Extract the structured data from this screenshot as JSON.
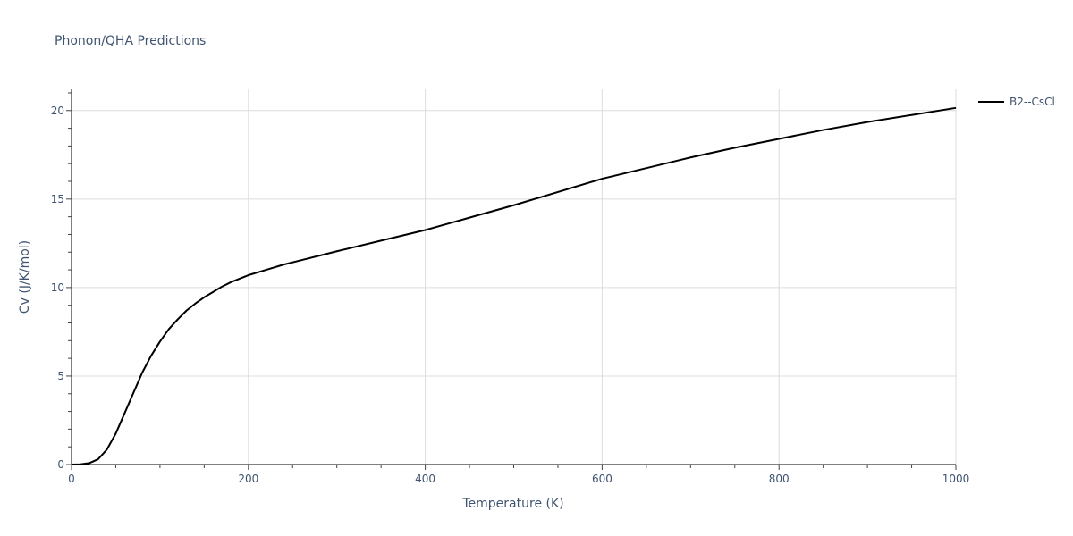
{
  "chart_data": {
    "type": "line",
    "title": "Phonon/QHA Predictions",
    "xlabel": "Temperature (K)",
    "ylabel": "Cv (J/K/mol)",
    "xlim": [
      0,
      1000
    ],
    "ylim": [
      0,
      21.2
    ],
    "x_ticks": [
      0,
      200,
      400,
      600,
      800,
      1000
    ],
    "x_tick_labels": [
      "0",
      "200",
      "400",
      "600",
      "800",
      "1000"
    ],
    "y_ticks": [
      0,
      5,
      10,
      15,
      20
    ],
    "y_tick_labels": [
      "0",
      "5",
      "10",
      "15",
      "20"
    ],
    "grid": true,
    "legend_position": "top-right",
    "series": [
      {
        "name": "B2--CsCl",
        "color": "#000000",
        "x": [
          0,
          10,
          20,
          30,
          40,
          50,
          60,
          70,
          80,
          90,
          100,
          110,
          120,
          130,
          140,
          150,
          160,
          170,
          180,
          190,
          200,
          220,
          240,
          260,
          280,
          300,
          350,
          400,
          450,
          500,
          550,
          600,
          650,
          700,
          750,
          800,
          850,
          900,
          950,
          1000
        ],
        "y": [
          0,
          0.01,
          0.08,
          0.3,
          0.85,
          1.75,
          2.9,
          4.05,
          5.2,
          6.15,
          6.95,
          7.65,
          8.2,
          8.7,
          9.1,
          9.45,
          9.75,
          10.05,
          10.3,
          10.5,
          10.7,
          11.0,
          11.3,
          11.55,
          11.8,
          12.05,
          12.65,
          13.25,
          13.95,
          14.65,
          15.4,
          16.15,
          16.75,
          17.35,
          17.9,
          18.4,
          18.9,
          19.35,
          19.75,
          20.15
        ]
      }
    ]
  }
}
